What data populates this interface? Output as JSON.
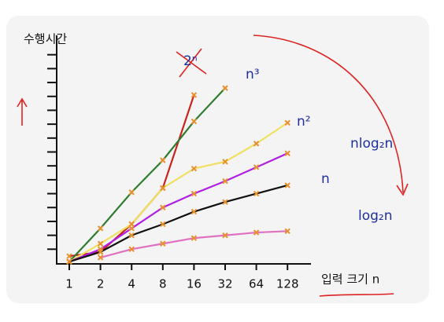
{
  "chart_data": {
    "type": "line",
    "ylabel": "수행시간",
    "xlabel": "입력 크기 n",
    "categories": [
      "1",
      "2",
      "4",
      "8",
      "16",
      "32",
      "64",
      "128"
    ],
    "ylim": [
      0,
      16
    ],
    "yticks": [
      1,
      2,
      3,
      4,
      5,
      6,
      7,
      8,
      9,
      10,
      11,
      12,
      13,
      14,
      15
    ],
    "marker_color": "#e8902c",
    "series": [
      {
        "name": "2ⁿ",
        "color": "#c8241c",
        "values": [
          0.5,
          0.8,
          2.8,
          5.4,
          12.1,
          null,
          null,
          null
        ]
      },
      {
        "name": "n³",
        "color": "#2e7d2e",
        "values": [
          0.1,
          2.5,
          5.1,
          7.4,
          10.2,
          12.6,
          null,
          null
        ]
      },
      {
        "name": "n²",
        "color": "#f0e060",
        "values": [
          0.1,
          1.4,
          2.8,
          5.4,
          6.8,
          7.3,
          8.6,
          10.1
        ]
      },
      {
        "name": "nlog₂n",
        "color": "#b020e0",
        "values": [
          0.1,
          1.0,
          2.5,
          4.0,
          5.0,
          5.9,
          6.9,
          7.9
        ]
      },
      {
        "name": "n",
        "color": "#111111",
        "values": [
          0.1,
          0.8,
          2.0,
          2.8,
          3.7,
          4.4,
          5.0,
          5.6
        ]
      },
      {
        "name": "log₂n",
        "color": "#e070c0",
        "values": [
          null,
          0.4,
          1.0,
          1.4,
          1.8,
          2.0,
          2.2,
          2.3
        ]
      }
    ]
  }
}
